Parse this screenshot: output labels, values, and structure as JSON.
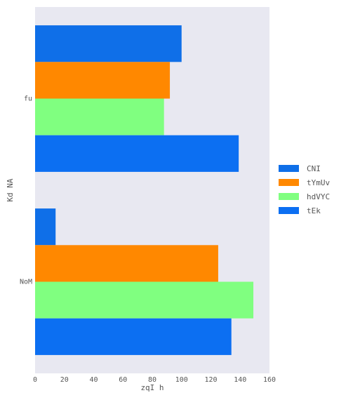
{
  "chart_data": {
    "type": "bar",
    "orientation": "horizontal",
    "categories": [
      "fu",
      "NoM"
    ],
    "series": [
      {
        "name": "CNI",
        "values": [
          100,
          14
        ],
        "color": "#0f6fe8"
      },
      {
        "name": "tYmUv",
        "values": [
          92,
          125
        ],
        "color": "#ff8800"
      },
      {
        "name": "hdVYC",
        "values": [
          88,
          149
        ],
        "color": "#80ff80"
      },
      {
        "name": "tEk",
        "values": [
          139,
          134
        ],
        "color": "#0c6ff2"
      }
    ],
    "xlabel": "zqI h",
    "ylabel": "Kd NA",
    "xlim": [
      0,
      160
    ],
    "xticks": [
      "0",
      "20",
      "40",
      "60",
      "80",
      "100",
      "120",
      "140",
      "160"
    ],
    "grid": false,
    "legend_position": "right",
    "background": "#e8e8f1"
  }
}
